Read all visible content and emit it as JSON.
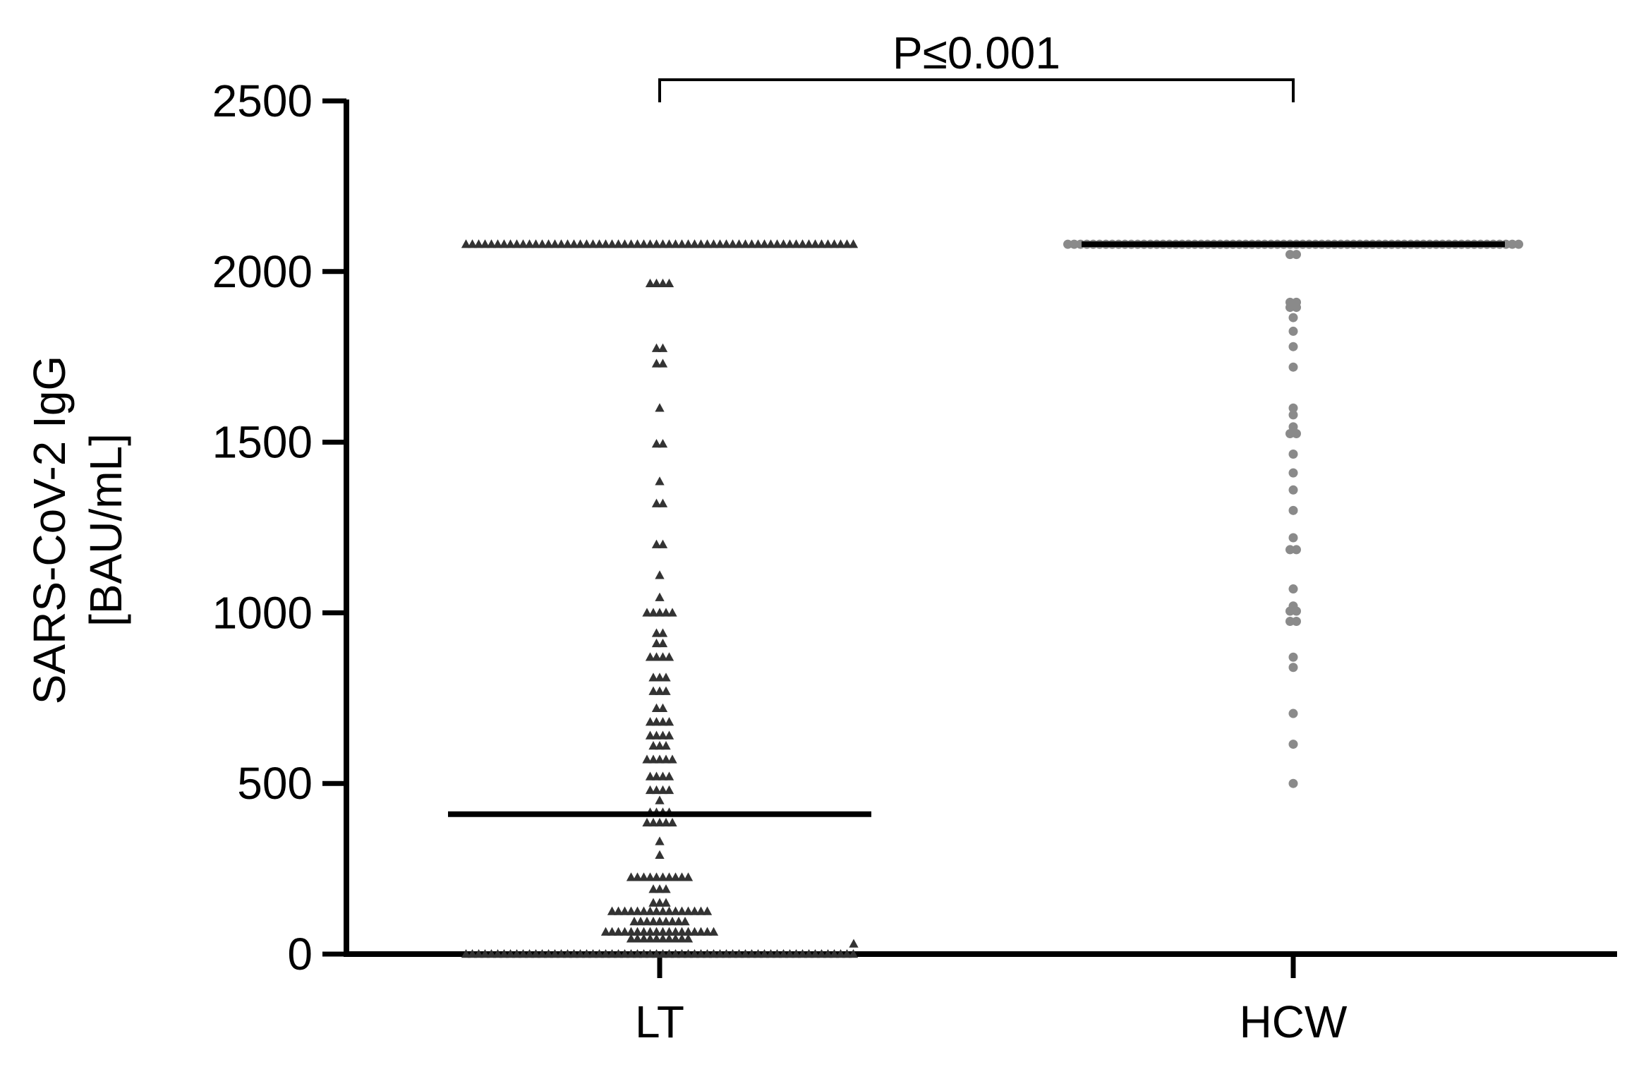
{
  "chart_data": {
    "type": "scatter",
    "plot_style": "column scatter (dot plot) with median lines",
    "title": "",
    "xlabel": "",
    "ylabel_lines": [
      "SARS-CoV-2 IgG",
      "[BAU/mL]"
    ],
    "ylim": [
      0,
      2500
    ],
    "yticks": [
      0,
      500,
      1000,
      1500,
      2000,
      2500
    ],
    "ytick_labels": [
      "0",
      "500",
      "1000",
      "1500",
      "2000",
      "2500"
    ],
    "categories": [
      "LT",
      "HCW"
    ],
    "grid": false,
    "annotation": {
      "text": "P≤0.001",
      "from": "LT",
      "to": "HCW"
    },
    "series": [
      {
        "category": "LT",
        "marker": "triangle",
        "color": "#333333",
        "median": 410,
        "clusters": [
          {
            "value": 2080,
            "count": 62
          },
          {
            "value": 1965,
            "count": 4
          },
          {
            "value": 1775,
            "count": 2
          },
          {
            "value": 1730,
            "count": 2
          },
          {
            "value": 1600,
            "count": 1
          },
          {
            "value": 1495,
            "count": 2
          },
          {
            "value": 1385,
            "count": 1
          },
          {
            "value": 1320,
            "count": 2
          },
          {
            "value": 1200,
            "count": 2
          },
          {
            "value": 1110,
            "count": 1
          },
          {
            "value": 1045,
            "count": 1
          },
          {
            "value": 1000,
            "count": 5
          },
          {
            "value": 940,
            "count": 2
          },
          {
            "value": 910,
            "count": 2
          },
          {
            "value": 870,
            "count": 4
          },
          {
            "value": 810,
            "count": 3
          },
          {
            "value": 770,
            "count": 3
          },
          {
            "value": 720,
            "count": 2
          },
          {
            "value": 680,
            "count": 4
          },
          {
            "value": 640,
            "count": 4
          },
          {
            "value": 610,
            "count": 3
          },
          {
            "value": 570,
            "count": 5
          },
          {
            "value": 520,
            "count": 4
          },
          {
            "value": 480,
            "count": 4
          },
          {
            "value": 450,
            "count": 1
          },
          {
            "value": 415,
            "count": 4
          },
          {
            "value": 385,
            "count": 5
          },
          {
            "value": 330,
            "count": 1
          },
          {
            "value": 290,
            "count": 1
          },
          {
            "value": 225,
            "count": 10
          },
          {
            "value": 190,
            "count": 3
          },
          {
            "value": 150,
            "count": 3
          },
          {
            "value": 125,
            "count": 16
          },
          {
            "value": 95,
            "count": 9
          },
          {
            "value": 65,
            "count": 18
          },
          {
            "value": 45,
            "count": 10
          },
          {
            "value": 0,
            "count": 62
          }
        ],
        "outliers": [
          {
            "value": 30,
            "offset": 2.5
          }
        ]
      },
      {
        "category": "HCW",
        "marker": "circle",
        "color": "#8a8a8a",
        "median": 2080,
        "clusters": [
          {
            "value": 2080,
            "count": 72
          },
          {
            "value": 2050,
            "count": 2
          },
          {
            "value": 1910,
            "count": 2
          },
          {
            "value": 1895,
            "count": 2
          },
          {
            "value": 1865,
            "count": 1
          },
          {
            "value": 1825,
            "count": 1
          },
          {
            "value": 1780,
            "count": 1
          },
          {
            "value": 1720,
            "count": 1
          },
          {
            "value": 1600,
            "count": 1
          },
          {
            "value": 1580,
            "count": 1
          },
          {
            "value": 1545,
            "count": 1
          },
          {
            "value": 1525,
            "count": 2
          },
          {
            "value": 1465,
            "count": 1
          },
          {
            "value": 1410,
            "count": 1
          },
          {
            "value": 1360,
            "count": 1
          },
          {
            "value": 1300,
            "count": 1
          },
          {
            "value": 1220,
            "count": 1
          },
          {
            "value": 1185,
            "count": 2
          },
          {
            "value": 1070,
            "count": 1
          },
          {
            "value": 1020,
            "count": 1
          },
          {
            "value": 1005,
            "count": 2
          },
          {
            "value": 975,
            "count": 2
          },
          {
            "value": 870,
            "count": 1
          },
          {
            "value": 840,
            "count": 1
          },
          {
            "value": 705,
            "count": 1
          },
          {
            "value": 615,
            "count": 1
          },
          {
            "value": 500,
            "count": 1
          }
        ]
      }
    ]
  }
}
